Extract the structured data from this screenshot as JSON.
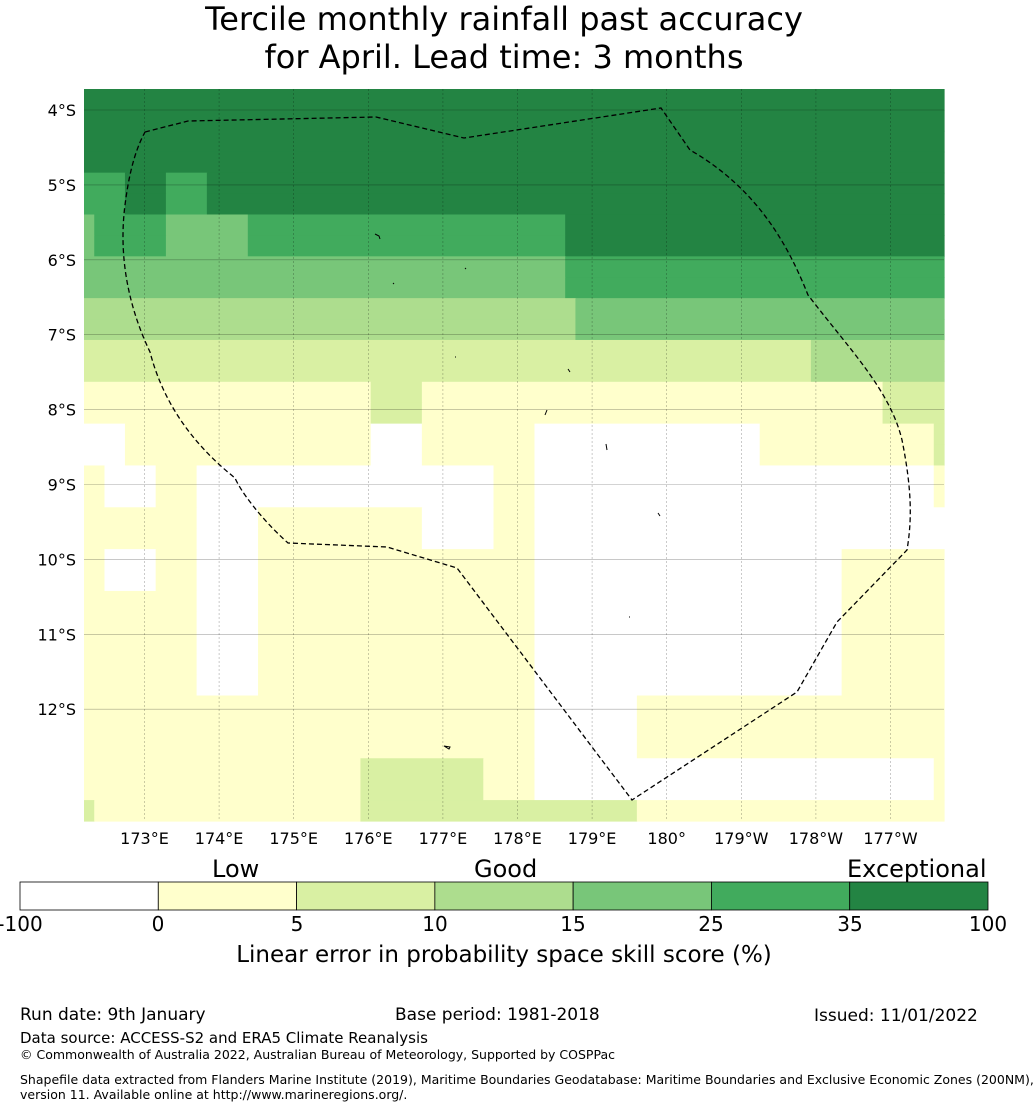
{
  "title": {
    "line1": "Tercile monthly rainfall past accuracy",
    "line2": "for April. Lead time: 3 months"
  },
  "axes": {
    "lat_labels": [
      "4°S",
      "5°S",
      "6°S",
      "7°S",
      "8°S",
      "9°S",
      "10°S",
      "11°S",
      "12°S"
    ],
    "lon_labels": [
      "173°E",
      "174°E",
      "175°E",
      "176°E",
      "177°E",
      "178°E",
      "179°E",
      "180°",
      "179°W",
      "178°W",
      "177°W"
    ]
  },
  "legend": {
    "categories": [
      "Low",
      "Good",
      "Exceptional"
    ],
    "bins": [
      {
        "from": -100,
        "to": 0,
        "color": "#ffffff"
      },
      {
        "from": 0,
        "to": 5,
        "color": "#ffffcc"
      },
      {
        "from": 5,
        "to": 10,
        "color": "#d9f0a3"
      },
      {
        "from": 10,
        "to": 15,
        "color": "#addd8e"
      },
      {
        "from": 15,
        "to": 25,
        "color": "#78c679"
      },
      {
        "from": 25,
        "to": 35,
        "color": "#41ab5d"
      },
      {
        "from": 35,
        "to": 100,
        "color": "#238443"
      }
    ],
    "tick_labels": [
      "-100",
      "0",
      "5",
      "10",
      "15",
      "25",
      "35",
      "100"
    ],
    "axis_label": "Linear error in probability space skill score (%)"
  },
  "grid_rows": [
    "666666666666666666666666666666666666666666666666666666666666666666666666666666666666",
    "666666666666666666666666666666666666666666666666666666666666666666666666666666666666",
    "666666666666666666666666666666666666666666666666666666666666666666666666666666666666",
    "666666666666666666666666666666666666666666666666666666666666666666666666666666666666",
    "555566665555666666666666666666666666666666666666666666666666666666666666666666666666",
    "555566665555666666666666666666666666666666666666666666666666666666666666666666666666",
    "455555554444444455555555555555555555555555555556666666666666666666666666666666666666",
    "455555554444444455555555555555555555555555555556666666666666666666666666666666666666",
    "444444444444444444444444444444444444444444444445555555555555555555555555555555555555",
    "444444444444444444444444444444444444444444444445555555555555555555555555555555555555",
    "333333333333333333333333333333333333333333333333444444444444444444444444444444444444",
    "333333333333333333333333333333333333333333333333444444444444444444444444444444444444",
    "222222222222222222222222222222222222222222222222222222222222222222222223333333333333",
    "222222222222222222222222222222222222222222222222222222222222222222222223333333333333",
    "111111111111111111111111111122222111111111111111111111111111111111111111111111222222",
    "111111111111111111111111111122222111111111111111111111111111111111111111111111222222",
    "000011111111111111111111111100000111111111110000000000000000000000111111111111111112",
    "000011111111111111111111111100000111111111110000000000000000000000111111111111111112",
    "110000011110000000000000000000000000000011110000000000000000000000000000000000000001",
    "110000011110000000000000000000000000000011110000000000000000000000000000000000000001",
    "111111111110000001111111111111111000000011110000000000000000000000000000000000000000",
    "111111111110000001111111111111111000000011110000000000000000000000000000000000000000",
    "110000011110000001111111111111111111111111110000000000000000000000000000001111111111",
    "110000011110000001111111111111111111111111110000000000000000000000000000001111111111",
    "111111111110000001111111111111111111111111110000000000000000000000000000001111111111",
    "111111111110000001111111111111111111111111110000000000000000000000000000001111111111",
    "111111111110000001111111111111111111111111110000000000000000000000000000001111111111",
    "111111111110000001111111111111111111111111110000000000000000000000000000001111111111",
    "111111111110000001111111111111111111111111110000000000000000000000000000001111111111",
    "111111111111111111111111111111111111111111110000000000111111111111111111111111111111",
    "111111111111111111111111111111111111111111110000000000111111111111111111111111111111",
    "111111111111111111111111111111111111111111110000000000111111111111111111111111111111",
    "111111111111111111111111111222222222222111110000000000000000000000000000000000000001",
    "111111111111111111111111111222222222222111110000000000000000000000000000000000000001",
    "211111111111111111111111111222222222222222222222222222111111111111111111111111111111"
  ],
  "footer": {
    "run_date": "Run date: 9th January",
    "base_period": "Base period: 1981-2018",
    "issued": "Issued: 11/01/2022",
    "data_source": "Data source: ACCESS-S2 and ERA5 Climate Reanalysis",
    "copyright": "© Commonwealth of Australia 2022, Australian Bureau of Meteorology, Supported by COSPPac",
    "shapefile_line1": "Shapefile data extracted from Flanders Marine Institute (2019), Maritime Boundaries Geodatabase: Maritime Boundaries and Exclusive Economic Zones (200NM),",
    "shapefile_line2": "version 11. Available online at http://www.marineregions.org/."
  }
}
